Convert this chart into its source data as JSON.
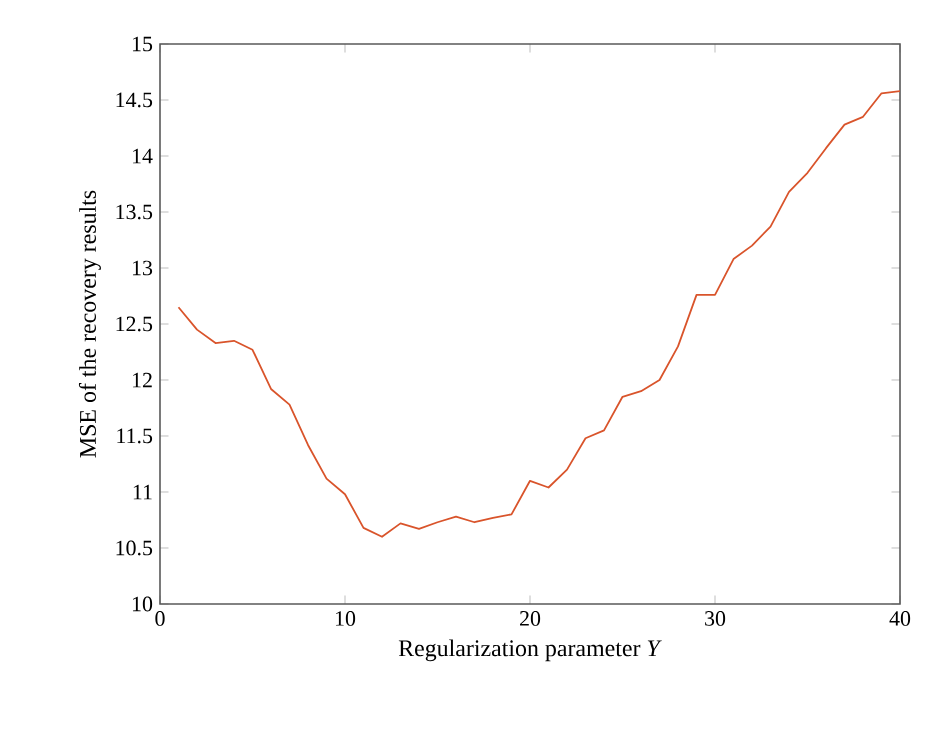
{
  "chart_data": {
    "type": "line",
    "xlabel": "Regularization parameter *Y*",
    "ylabel": "MSE of the recovery results",
    "x": [
      1,
      2,
      3,
      4,
      5,
      6,
      7,
      8,
      9,
      10,
      11,
      12,
      13,
      14,
      15,
      16,
      17,
      18,
      19,
      20,
      21,
      22,
      23,
      24,
      25,
      26,
      27,
      28,
      29,
      30,
      31,
      32,
      33,
      34,
      35,
      36,
      37,
      38,
      39,
      40
    ],
    "series": [
      {
        "color": "#d9542b",
        "values": [
          12.65,
          12.45,
          12.33,
          12.35,
          12.27,
          11.92,
          11.78,
          11.42,
          11.12,
          10.98,
          10.68,
          10.6,
          10.72,
          10.67,
          10.73,
          10.78,
          10.73,
          10.77,
          10.8,
          11.1,
          11.04,
          11.2,
          11.48,
          11.55,
          11.85,
          11.9,
          12.0,
          12.3,
          12.76,
          12.76,
          13.08,
          13.2,
          13.37,
          13.68,
          13.85,
          14.07,
          14.28,
          14.35,
          14.56,
          14.58
        ]
      }
    ],
    "xlim": [
      0,
      40
    ],
    "ylim": [
      10,
      15
    ],
    "xticks": [
      0,
      10,
      20,
      30,
      40
    ],
    "yticks": [
      10,
      10.5,
      11,
      11.5,
      12,
      12.5,
      13,
      13.5,
      14,
      14.5,
      15
    ],
    "grid": false,
    "marker": "none",
    "line_style": "solid"
  }
}
